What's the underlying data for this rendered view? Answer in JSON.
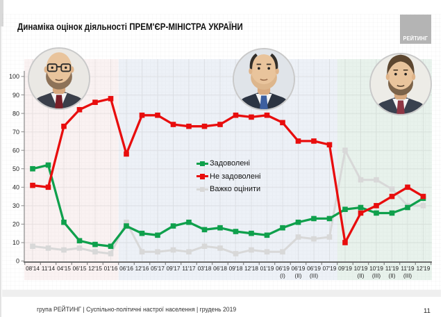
{
  "title": "Динаміка оцінок діяльності ПРЕМ'ЄР-МІНІСТРА УКРАЇНИ",
  "logo": {
    "text": "РЕЙТИНГ",
    "bg_color": "#b4b4b4"
  },
  "footer": {
    "text": "група РЕЙТИНГ | Суспільно-політичні настрої населення  | грудень 2019",
    "page": "11"
  },
  "avatars": [
    {
      "name": "pm-photo-period-1"
    },
    {
      "name": "pm-photo-period-2"
    },
    {
      "name": "pm-photo-period-3"
    }
  ],
  "chart_data": {
    "type": "line",
    "title": "Динаміка оцінок діяльності ПРЕМ'ЄР-МІНІСТРА УКРАЇНИ",
    "categories": [
      "08'14",
      "11'14",
      "04'15",
      "06'15",
      "12'15",
      "01'16",
      "06'16",
      "12'16",
      "05'17",
      "09'17",
      "11'17",
      "03'18",
      "06'18",
      "09'18",
      "12'18",
      "01'19",
      "06'19 (I)",
      "06'19 (II)",
      "06'19 (III)",
      "07'19",
      "09'19",
      "10'19 (II)",
      "10'19 (III)",
      "11'19 (II)",
      "11'19 (III)",
      "12'19"
    ],
    "series": [
      {
        "name": "Задоволені",
        "color": "#0fa04c",
        "values": [
          50,
          52,
          21,
          11,
          9,
          8,
          19,
          15,
          14,
          19,
          21,
          17,
          18,
          16,
          15,
          14,
          18,
          21,
          23,
          23,
          28,
          29,
          26,
          26,
          29,
          34
        ]
      },
      {
        "name": "Не задоволені",
        "color": "#e80d0d",
        "values": [
          41,
          40,
          73,
          82,
          86,
          88,
          58,
          79,
          79,
          74,
          73,
          73,
          74,
          79,
          78,
          79,
          75,
          65,
          65,
          63,
          10,
          26,
          30,
          35,
          40,
          35
        ]
      },
      {
        "name": "Важко оцінити",
        "color": "#d8d8d8",
        "values": [
          8,
          7,
          6,
          7,
          5,
          4,
          21,
          5,
          5,
          6,
          5,
          8,
          7,
          4,
          6,
          5,
          5,
          13,
          12,
          13,
          60,
          44,
          44,
          39,
          30,
          30
        ]
      }
    ],
    "ylim": [
      0,
      100
    ],
    "ytick_step": 10,
    "grid": true,
    "legend_position": "middle-left",
    "periods": [
      {
        "name": "period-1",
        "to": "01'16",
        "color": "#faf2f2"
      },
      {
        "name": "period-2",
        "to": "07'19",
        "color": "#edf1f7"
      },
      {
        "name": "period-3",
        "to": "12'19",
        "color": "#e8f2ec"
      }
    ]
  }
}
